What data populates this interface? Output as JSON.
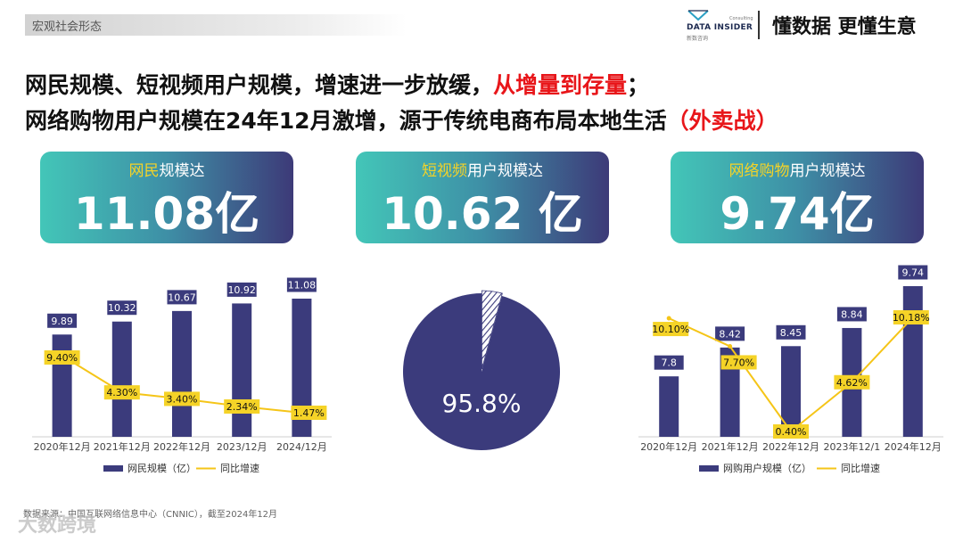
{
  "section_tag": "宏观社会形态",
  "brand": {
    "name": "DATA INSIDER",
    "sub": "新数咨询",
    "consult": "Consulting"
  },
  "slogan": "懂数据 更懂生意",
  "headline": {
    "line1_a": "网民规模、短视频用户规模，增速进一步放缓，",
    "line1_red": "从增量到存量",
    "line1_end": "；",
    "line2_a": "网络购物用户规模在24年12月激增，源于传统电商布局本地生活",
    "line2_red": "（外卖战）"
  },
  "cards": [
    {
      "label_highlight": "网民",
      "label_rest": "规模达",
      "value": "11.08亿"
    },
    {
      "label_highlight": "短视频",
      "label_rest": "用户规模达",
      "value": "10.62 亿"
    },
    {
      "label_highlight": "网络购物",
      "label_rest": "用户规模达",
      "value": "9.74亿"
    }
  ],
  "colors": {
    "bar": "#3b3b7c",
    "line": "#f5c518",
    "label_box": "#f5d327",
    "accent_red": "#e8161a"
  },
  "chart_data": [
    {
      "type": "bar",
      "categories": [
        "2020年12月",
        "2021年12月",
        "2022年12月",
        "2023/12月",
        "2024/12月"
      ],
      "series": [
        {
          "name": "网民规模（亿）",
          "type": "bar",
          "values": [
            9.89,
            10.32,
            10.67,
            10.92,
            11.08
          ],
          "labels": [
            "9.89",
            "10.32",
            "10.67",
            "10.92",
            "11.08"
          ]
        },
        {
          "name": "同比增速",
          "type": "line",
          "values": [
            9.4,
            4.3,
            3.4,
            2.34,
            1.47
          ],
          "labels": [
            "9.40%",
            "4.30%",
            "3.40%",
            "2.34%",
            "1.47%"
          ]
        }
      ],
      "legend": "bottom"
    },
    {
      "type": "pie",
      "slices": [
        {
          "value": 95.8,
          "label": "95.8%"
        },
        {
          "value": 4.2,
          "label": ""
        }
      ]
    },
    {
      "type": "bar",
      "categories": [
        "2020年12月",
        "2021年12月",
        "2022年12月",
        "2023年12/1",
        "2024年12月"
      ],
      "series": [
        {
          "name": "网购用户规模（亿）",
          "type": "bar",
          "values": [
            7.8,
            8.42,
            8.45,
            8.84,
            9.74
          ],
          "labels": [
            "7.8",
            "8.42",
            "8.45",
            "8.84",
            "9.74"
          ]
        },
        {
          "name": "同比增速",
          "type": "line",
          "values": [
            10.1,
            7.7,
            0.4,
            4.62,
            10.18
          ],
          "labels": [
            "10.10%",
            "7.70%",
            "0.40%",
            "4.62%",
            "10.18%"
          ]
        }
      ],
      "legend": "bottom"
    }
  ],
  "source": "数据来源：中国互联网络信息中心（CNNIC），截至2024年12月",
  "watermark": "大数跨境"
}
